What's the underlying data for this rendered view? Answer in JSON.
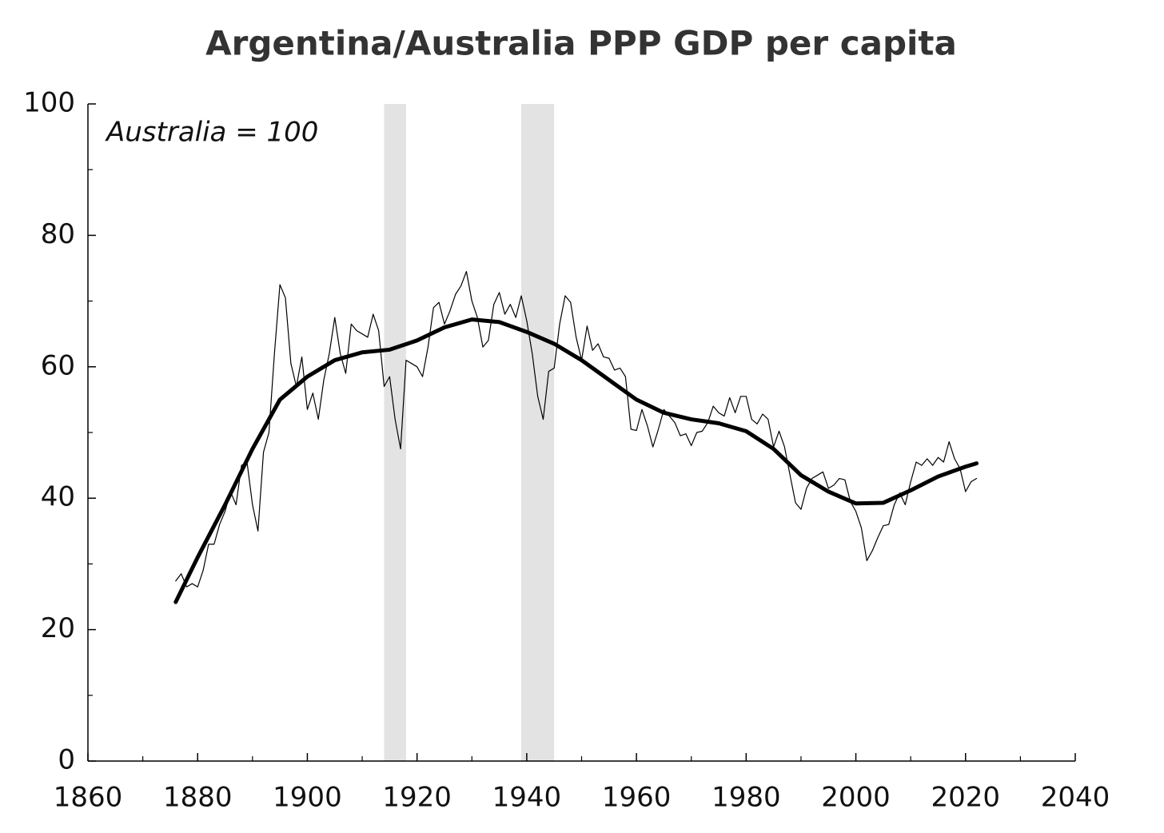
{
  "chart_data": {
    "type": "line",
    "title": "Argentina/Australia PPP GDP per capita",
    "annotation": "Australia = 100",
    "xlim": [
      1860,
      2040
    ],
    "xticks": [
      1860,
      1880,
      1900,
      1920,
      1940,
      1960,
      1980,
      2000,
      2020,
      2040
    ],
    "xminorticks": [
      1870,
      1890,
      1910,
      1930,
      1950,
      1970,
      1990,
      2010,
      2030
    ],
    "ylim": [
      0,
      100
    ],
    "yticks": [
      0,
      20,
      40,
      60,
      80,
      100
    ],
    "yminorticks": [
      10,
      30,
      50,
      70,
      90
    ],
    "shaded_ranges": [
      {
        "x": [
          1914,
          1918
        ],
        "color": "#e3e3e3"
      },
      {
        "x": [
          1939,
          1945
        ],
        "color": "#e3e3e3"
      }
    ],
    "series": [
      {
        "color": "#000000",
        "width": 1.2,
        "x": [
          1876,
          1877,
          1878,
          1879,
          1880,
          1881,
          1882,
          1883,
          1884,
          1885,
          1886,
          1887,
          1888,
          1889,
          1890,
          1891,
          1892,
          1893,
          1894,
          1895,
          1896,
          1897,
          1898,
          1899,
          1900,
          1901,
          1902,
          1903,
          1904,
          1905,
          1906,
          1907,
          1908,
          1909,
          1910,
          1911,
          1912,
          1913,
          1914,
          1915,
          1916,
          1917,
          1918,
          1919,
          1920,
          1921,
          1922,
          1923,
          1924,
          1925,
          1926,
          1927,
          1928,
          1929,
          1930,
          1931,
          1932,
          1933,
          1934,
          1935,
          1936,
          1937,
          1938,
          1939,
          1940,
          1941,
          1942,
          1943,
          1944,
          1945,
          1946,
          1947,
          1948,
          1949,
          1950,
          1951,
          1952,
          1953,
          1954,
          1955,
          1956,
          1957,
          1958,
          1959,
          1960,
          1961,
          1962,
          1963,
          1964,
          1965,
          1966,
          1967,
          1968,
          1969,
          1970,
          1971,
          1972,
          1973,
          1974,
          1975,
          1976,
          1977,
          1978,
          1979,
          1980,
          1981,
          1982,
          1983,
          1984,
          1985,
          1986,
          1987,
          1988,
          1989,
          1990,
          1991,
          1992,
          1993,
          1994,
          1995,
          1996,
          1997,
          1998,
          1999,
          2000,
          2001,
          2002,
          2003,
          2004,
          2005,
          2006,
          2007,
          2008,
          2009,
          2010,
          2011,
          2012,
          2013,
          2014,
          2015,
          2016,
          2017,
          2018,
          2019,
          2020,
          2021,
          2022
        ],
        "values": [
          27.4,
          28.5,
          26.5,
          27,
          26.5,
          29,
          33,
          33,
          36,
          38,
          41,
          39,
          45,
          45.5,
          39,
          35,
          47,
          50,
          62,
          72.5,
          70.5,
          60.5,
          57,
          61.5,
          53.5,
          56,
          52,
          58,
          62,
          67.5,
          62,
          59,
          66.5,
          65.5,
          65,
          64.5,
          68,
          65.5,
          57,
          58.5,
          52,
          47.5,
          61,
          60.5,
          60,
          58.5,
          63,
          69,
          69.8,
          66.5,
          68.5,
          71,
          72.3,
          74.5,
          70,
          67.5,
          63,
          64,
          69.5,
          71.3,
          68,
          69.5,
          67.5,
          70.8,
          67,
          62,
          55.5,
          52,
          59.3,
          59.8,
          66.5,
          70.8,
          69.8,
          64.5,
          61,
          66.2,
          62.5,
          63.5,
          61.5,
          61.3,
          59.5,
          59.8,
          58.5,
          50.5,
          50.3,
          53.5,
          51,
          47.8,
          50.5,
          53.5,
          52.5,
          51.5,
          49.5,
          49.8,
          48,
          50,
          50.2,
          51.5,
          54,
          53,
          52.5,
          55.3,
          53,
          55.5,
          55.5,
          52,
          51.3,
          52.8,
          52,
          47.8,
          50.2,
          47.8,
          43.5,
          39.3,
          38.3,
          41.5,
          43,
          43.5,
          44,
          41.5,
          42,
          43,
          42.8,
          39.5,
          38,
          35.5,
          30.5,
          32,
          34,
          35.8,
          36,
          39,
          40.8,
          39,
          42.5,
          45.5,
          45,
          46,
          45,
          46.2,
          45.5,
          48.6,
          46,
          44.5,
          41,
          42.5,
          43
        ]
      },
      {
        "color": "#000000",
        "width": 5,
        "x": [
          1876,
          1880,
          1885,
          1890,
          1895,
          1900,
          1905,
          1910,
          1915,
          1920,
          1925,
          1930,
          1935,
          1940,
          1945,
          1950,
          1955,
          1960,
          1965,
          1970,
          1975,
          1980,
          1985,
          1990,
          1995,
          2000,
          2005,
          2010,
          2015,
          2020,
          2022
        ],
        "values": [
          24.2,
          31,
          39,
          47.5,
          55,
          58.5,
          61,
          62.2,
          62.6,
          64,
          66,
          67.2,
          66.8,
          65.3,
          63.5,
          61,
          58,
          55,
          53,
          52,
          51.4,
          50.2,
          47.5,
          43.5,
          41,
          39.2,
          39.3,
          41.2,
          43.3,
          44.8,
          45.3
        ]
      }
    ]
  }
}
